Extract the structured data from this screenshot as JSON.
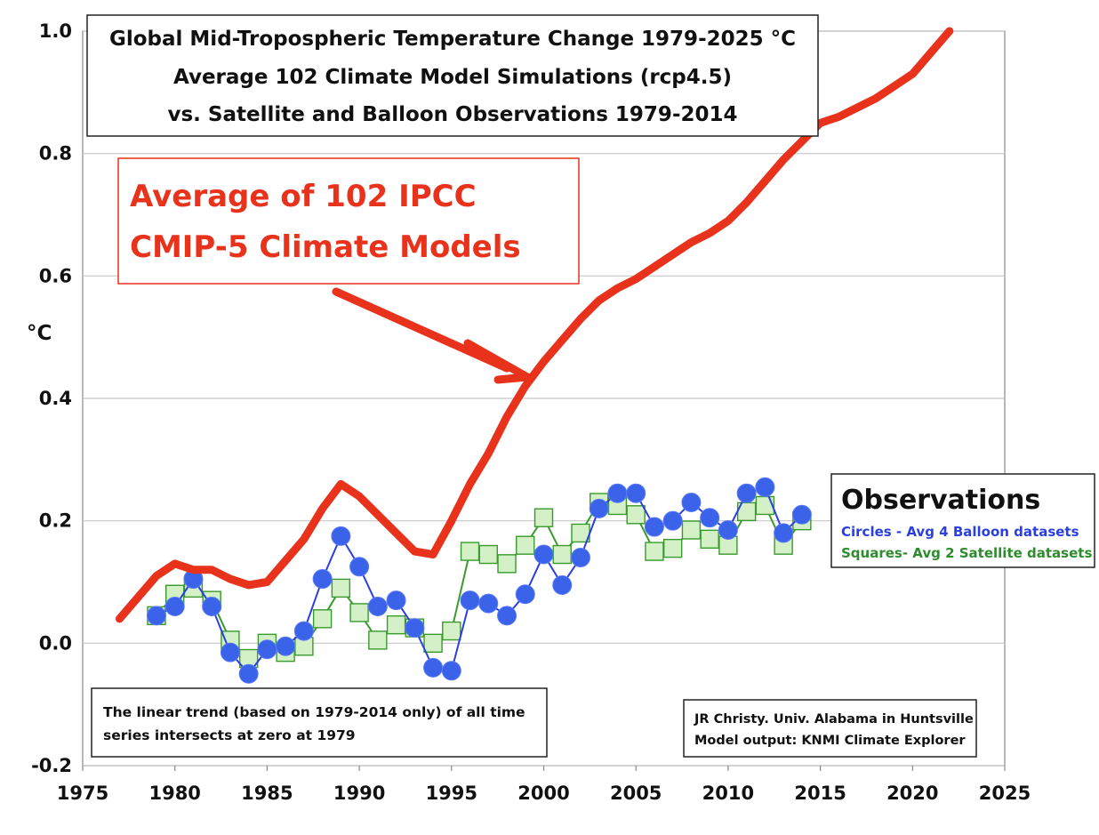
{
  "chart_data": {
    "type": "line",
    "title_lines": [
      "Global Mid-Tropospheric Temperature Change 1979-2025 °C",
      "Average 102 Climate Model Simulations (rcp4.5)",
      "vs. Satellite and Balloon Observations 1979-2014"
    ],
    "ylabel": "°C",
    "xlim": [
      1975,
      2025
    ],
    "ylim": [
      -0.2,
      1.0
    ],
    "x_ticks": [
      "1975",
      "1980",
      "1985",
      "1990",
      "1995",
      "2000",
      "2005",
      "2010",
      "2015",
      "2020",
      "2025"
    ],
    "x_tick_values": [
      1975,
      1980,
      1985,
      1990,
      1995,
      2000,
      2005,
      2010,
      2015,
      2020,
      2025
    ],
    "y_ticks": [
      "1.0",
      "0.8",
      "0.6",
      "0.4",
      "0.2",
      "0.0",
      "-0.2"
    ],
    "y_tick_values": [
      1.0,
      0.8,
      0.6,
      0.4,
      0.2,
      0.0,
      -0.2
    ],
    "grid": "horizontal",
    "callout": {
      "lines": [
        "Average of 102 IPCC",
        "CMIP-5 Climate Models"
      ]
    },
    "legend": {
      "title": "Observations",
      "entries": [
        "Circles - Avg 4 Balloon datasets",
        "Squares- Avg 2 Satellite datasets"
      ],
      "placement": "right"
    },
    "note_lines": [
      "The linear trend (based on 1979-2014 only) of all time",
      "series intersects at zero at 1979"
    ],
    "credit_lines": [
      "JR Christy. Univ. Alabama in Huntsville",
      "Model output: KNMI Climate Explorer"
    ],
    "series": [
      {
        "key": "models",
        "marker": "none",
        "color": "#e8321c",
        "x": [
          1977,
          1978,
          1979,
          1980,
          1981,
          1982,
          1983,
          1984,
          1985,
          1986,
          1987,
          1988,
          1989,
          1990,
          1991,
          1992,
          1993,
          1994,
          1995,
          1996,
          1997,
          1998,
          1999,
          2000,
          2001,
          2002,
          2003,
          2004,
          2005,
          2006,
          2007,
          2008,
          2009,
          2010,
          2011,
          2012,
          2013,
          2014,
          2015,
          2016,
          2017,
          2018,
          2019,
          2020,
          2021,
          2022
        ],
        "y": [
          0.04,
          0.075,
          0.11,
          0.13,
          0.12,
          0.12,
          0.105,
          0.095,
          0.1,
          0.135,
          0.17,
          0.22,
          0.26,
          0.24,
          0.21,
          0.18,
          0.15,
          0.145,
          0.2,
          0.26,
          0.31,
          0.37,
          0.42,
          0.46,
          0.495,
          0.53,
          0.56,
          0.58,
          0.595,
          0.615,
          0.635,
          0.655,
          0.67,
          0.69,
          0.72,
          0.755,
          0.79,
          0.82,
          0.85,
          0.86,
          0.875,
          0.89,
          0.91,
          0.93,
          0.965,
          1.0
        ]
      },
      {
        "key": "balloon",
        "marker": "circle",
        "color": "#3b63ea",
        "x": [
          1979,
          1980,
          1981,
          1982,
          1983,
          1984,
          1985,
          1986,
          1987,
          1988,
          1989,
          1990,
          1991,
          1992,
          1993,
          1994,
          1995,
          1996,
          1997,
          1998,
          1999,
          2000,
          2001,
          2002,
          2003,
          2004,
          2005,
          2006,
          2007,
          2008,
          2009,
          2010,
          2011,
          2012,
          2013,
          2014
        ],
        "y": [
          0.045,
          0.06,
          0.105,
          0.06,
          -0.015,
          -0.05,
          -0.01,
          -0.005,
          0.02,
          0.105,
          0.175,
          0.125,
          0.06,
          0.07,
          0.025,
          -0.04,
          -0.045,
          0.07,
          0.065,
          0.045,
          0.08,
          0.145,
          0.095,
          0.14,
          0.22,
          0.245,
          0.245,
          0.19,
          0.2,
          0.23,
          0.205,
          0.185,
          0.245,
          0.255,
          0.18,
          0.21
        ]
      },
      {
        "key": "satellite",
        "marker": "square",
        "color": "#3a9a2e",
        "x": [
          1979,
          1980,
          1981,
          1982,
          1983,
          1984,
          1985,
          1986,
          1987,
          1988,
          1989,
          1990,
          1991,
          1992,
          1993,
          1994,
          1995,
          1996,
          1997,
          1998,
          1999,
          2000,
          2001,
          2002,
          2003,
          2004,
          2005,
          2006,
          2007,
          2008,
          2009,
          2010,
          2011,
          2012,
          2013,
          2014
        ],
        "y": [
          0.045,
          0.08,
          0.09,
          0.07,
          0.005,
          -0.025,
          0.0,
          -0.015,
          -0.005,
          0.04,
          0.09,
          0.05,
          0.005,
          0.03,
          0.025,
          0.0,
          0.02,
          0.15,
          0.145,
          0.13,
          0.16,
          0.205,
          0.145,
          0.18,
          0.23,
          0.225,
          0.21,
          0.15,
          0.155,
          0.185,
          0.17,
          0.16,
          0.215,
          0.225,
          0.16,
          0.2
        ]
      }
    ]
  }
}
